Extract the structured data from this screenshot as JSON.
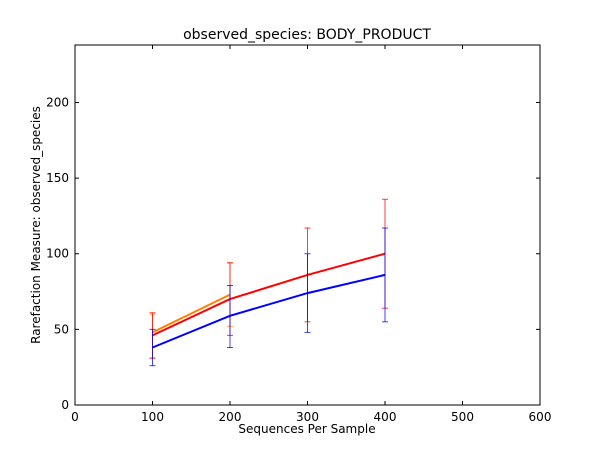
{
  "chart_data": {
    "type": "line",
    "title": "observed_species: BODY_PRODUCT",
    "xlabel": "Sequences Per Sample",
    "ylabel": "Rarefaction Measure: observed_species",
    "xlim": [
      0,
      600
    ],
    "ylim": [
      0,
      238
    ],
    "xticks": [
      0,
      100,
      200,
      300,
      400,
      500,
      600
    ],
    "yticks": [
      0,
      50,
      100,
      150,
      200
    ],
    "grid": false,
    "legend": "none",
    "series": [
      {
        "color": "#ff8000",
        "x": [
          100,
          200
        ],
        "y": [
          48,
          73
        ],
        "err_low": [
          31,
          52
        ],
        "err_high": [
          60,
          94
        ]
      },
      {
        "color": "#ff0000",
        "x": [
          100,
          200,
          300,
          400
        ],
        "y": [
          46,
          70,
          86,
          100
        ],
        "err_low": [
          31,
          46,
          55,
          64
        ],
        "err_high": [
          61,
          94,
          117,
          136
        ]
      },
      {
        "color": "#0000ff",
        "x": [
          100,
          200,
          300,
          400
        ],
        "y": [
          38,
          59,
          74,
          86
        ],
        "err_low": [
          26,
          38,
          48,
          55
        ],
        "err_high": [
          50,
          79,
          100,
          117
        ]
      }
    ]
  }
}
